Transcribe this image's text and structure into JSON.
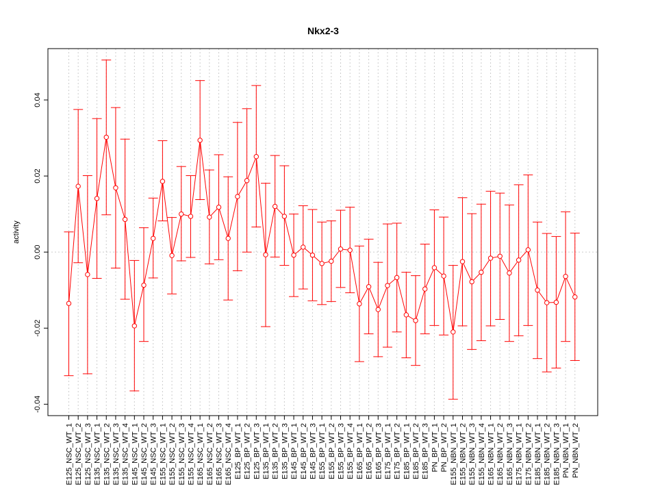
{
  "chart_data": {
    "type": "line",
    "title": "Nkx2-3",
    "xlabel": "",
    "ylabel": "activity",
    "ylim": [
      -0.043,
      0.0535
    ],
    "yticks": [
      -0.04,
      -0.02,
      0.0,
      0.02,
      0.04
    ],
    "ytick_labels": [
      "-0.04",
      "-0.02",
      "0.00",
      "0.02",
      "0.04"
    ],
    "grid": true,
    "zero_line": true,
    "error_bars": true,
    "colors": {
      "series": "#ff0000",
      "grid": "#cccccc",
      "axis": "#000000"
    },
    "categories": [
      "E125_NSC_WT_1",
      "E125_NSC_WT_2",
      "E125_NSC_WT_3",
      "E135_NSC_WT_1",
      "E135_NSC_WT_2",
      "E135_NSC_WT_3",
      "E135_NSC_WT_4",
      "E145_NSC_WT_1",
      "E145_NSC_WT_2",
      "E145_NSC_WT_3",
      "E155_NSC_WT_1",
      "E155_NSC_WT_2",
      "E155_NSC_WT_3",
      "E155_NSC_WT_4",
      "E165_NSC_WT_1",
      "E165_NSC_WT_2",
      "E165_NSC_WT_3",
      "E165_NSC_WT_4",
      "E125_BP_WT_1",
      "E125_BP_WT_2",
      "E125_BP_WT_3",
      "E135_BP_WT_1",
      "E135_BP_WT_2",
      "E135_BP_WT_3",
      "E145_BP_WT_1",
      "E145_BP_WT_2",
      "E145_BP_WT_3",
      "E155_BP_WT_1",
      "E155_BP_WT_2",
      "E155_BP_WT_3",
      "E155_BP_WT_4",
      "E165_BP_WT_1",
      "E165_BP_WT_2",
      "E165_BP_WT_3",
      "E175_BP_WT_1",
      "E175_BP_WT_2",
      "E185_BP_WT_1",
      "E185_BP_WT_2",
      "E185_BP_WT_3",
      "PN_BP_WT_1",
      "PN_BP_WT_2",
      "E155_NBN_WT_1",
      "E155_NBN_WT_2",
      "E155_NBN_WT_3",
      "E155_NBN_WT_4",
      "E165_NBN_WT_1",
      "E165_NBN_WT_2",
      "E165_NBN_WT_3",
      "E175_NBN_WT_1",
      "E175_NBN_WT_2",
      "E185_NBN_WT_1",
      "E185_NBN_WT_2",
      "E185_NBN_WT_3",
      "PN_NBN_WT_1",
      "PN_NBN_WT_2"
    ],
    "values": [
      -0.0135,
      0.0173,
      -0.0059,
      0.0141,
      0.0302,
      0.0169,
      0.0086,
      -0.0194,
      -0.0087,
      0.0036,
      0.0186,
      -0.0009,
      0.01,
      0.0094,
      0.0294,
      0.0092,
      0.0118,
      0.0036,
      0.0146,
      0.0188,
      0.0251,
      -0.0007,
      0.012,
      0.0094,
      -0.0008,
      0.0013,
      -0.0008,
      -0.003,
      -0.0024,
      0.0008,
      0.0005,
      -0.0136,
      -0.0091,
      -0.0151,
      -0.0088,
      -0.0067,
      -0.0165,
      -0.018,
      -0.0097,
      -0.0041,
      -0.0063,
      -0.021,
      -0.0025,
      -0.0078,
      -0.0053,
      -0.0016,
      -0.0011,
      -0.0055,
      -0.0021,
      0.0006,
      -0.01,
      -0.0133,
      -0.0132,
      -0.0064,
      -0.0118
    ],
    "lower": [
      -0.0325,
      -0.0028,
      -0.032,
      -0.0069,
      0.0098,
      -0.0042,
      -0.0124,
      -0.0365,
      -0.0235,
      -0.0068,
      0.0082,
      -0.011,
      -0.0023,
      -0.0014,
      0.0138,
      -0.0031,
      -0.002,
      -0.0126,
      -0.0049,
      0.0,
      0.0066,
      -0.0196,
      -0.0013,
      -0.0035,
      -0.0117,
      -0.0097,
      -0.0128,
      -0.0138,
      -0.013,
      -0.0093,
      -0.0107,
      -0.0288,
      -0.0215,
      -0.0275,
      -0.025,
      -0.021,
      -0.0278,
      -0.0298,
      -0.0215,
      -0.0193,
      -0.0218,
      -0.0387,
      -0.0194,
      -0.0256,
      -0.0233,
      -0.0194,
      -0.0177,
      -0.0235,
      -0.022,
      -0.0193,
      -0.028,
      -0.0315,
      -0.0305,
      -0.0235,
      -0.0285
    ],
    "upper": [
      0.0053,
      0.0375,
      0.0201,
      0.0351,
      0.0505,
      0.038,
      0.0297,
      -0.0022,
      0.0064,
      0.0142,
      0.0293,
      0.0091,
      0.0225,
      0.0201,
      0.0451,
      0.0216,
      0.0256,
      0.0198,
      0.0341,
      0.0377,
      0.0438,
      0.0181,
      0.0254,
      0.0227,
      0.01,
      0.0122,
      0.0112,
      0.0079,
      0.0082,
      0.011,
      0.0118,
      0.0016,
      0.0034,
      -0.0027,
      0.0074,
      0.0076,
      -0.0053,
      -0.0062,
      0.0021,
      0.0111,
      0.0092,
      -0.0035,
      0.0143,
      0.0101,
      0.0126,
      0.016,
      0.0155,
      0.0124,
      0.0177,
      0.0203,
      0.0079,
      0.0049,
      0.0041,
      0.0106,
      0.005
    ]
  }
}
